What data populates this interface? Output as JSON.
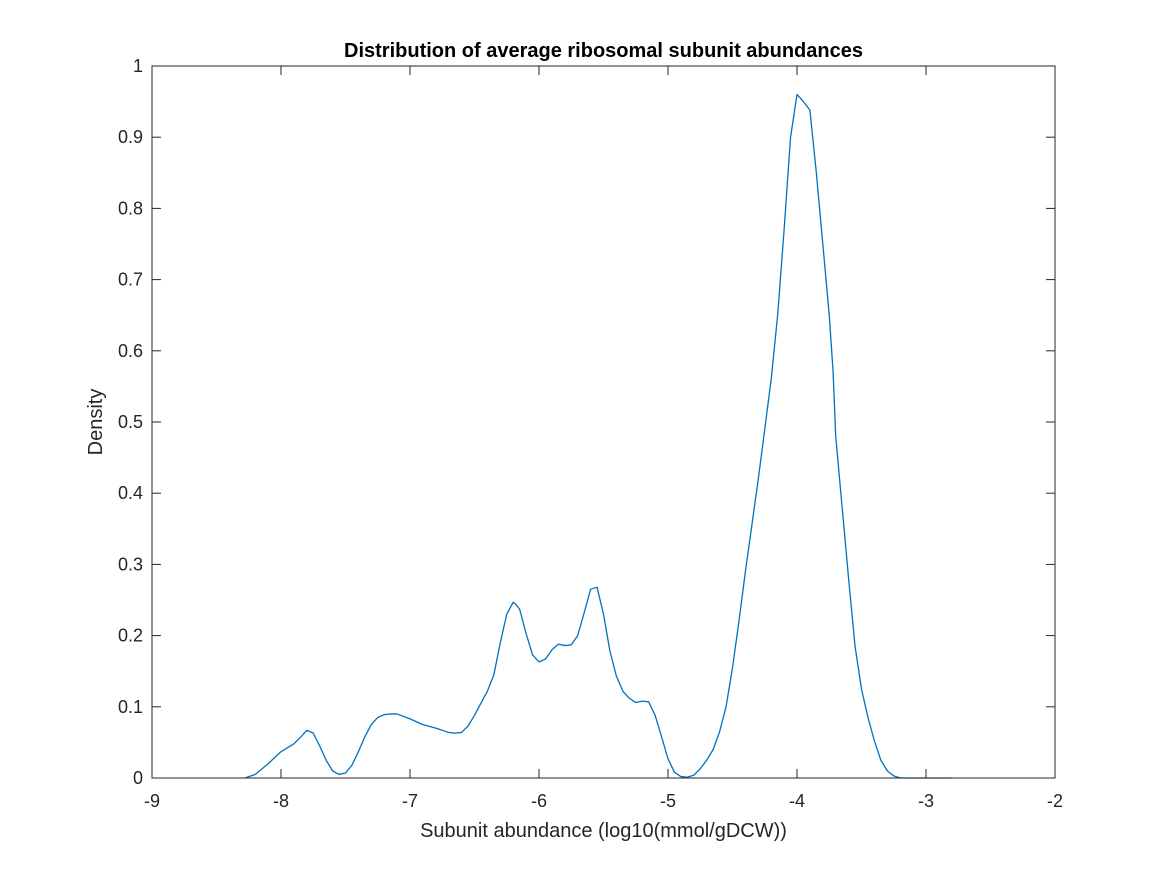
{
  "chart_data": {
    "type": "line",
    "title": "Distribution of average ribosomal subunit abundances",
    "xlabel": "Subunit abundance (log10(mmol/gDCW))",
    "ylabel": "Density",
    "xlim": [
      -9,
      -2
    ],
    "ylim": [
      0,
      1
    ],
    "xticks": [
      -9,
      -8,
      -7,
      -6,
      -5,
      -4,
      -3,
      -2
    ],
    "yticks": [
      0,
      0.1,
      0.2,
      0.3,
      0.4,
      0.5,
      0.6,
      0.7,
      0.8,
      0.9,
      1
    ],
    "xtick_labels": [
      "-9",
      "-8",
      "-7",
      "-6",
      "-5",
      "-4",
      "-3",
      "-2"
    ],
    "ytick_labels": [
      "0",
      "0.1",
      "0.2",
      "0.3",
      "0.4",
      "0.5",
      "0.6",
      "0.7",
      "0.8",
      "0.9",
      "1"
    ],
    "grid": false,
    "line_color": "#0072BD",
    "series": [
      {
        "name": "density",
        "x": [
          -8.28,
          -8.2,
          -8.1,
          -8.0,
          -7.9,
          -7.85,
          -7.8,
          -7.75,
          -7.7,
          -7.65,
          -7.6,
          -7.55,
          -7.5,
          -7.45,
          -7.4,
          -7.35,
          -7.3,
          -7.25,
          -7.2,
          -7.15,
          -7.1,
          -7.0,
          -6.9,
          -6.8,
          -6.7,
          -6.65,
          -6.6,
          -6.55,
          -6.5,
          -6.45,
          -6.4,
          -6.35,
          -6.3,
          -6.25,
          -6.2,
          -6.18,
          -6.15,
          -6.1,
          -6.05,
          -6.0,
          -5.95,
          -5.9,
          -5.85,
          -5.8,
          -5.75,
          -5.7,
          -5.65,
          -5.6,
          -5.55,
          -5.5,
          -5.45,
          -5.4,
          -5.35,
          -5.3,
          -5.25,
          -5.2,
          -5.15,
          -5.1,
          -5.05,
          -5.0,
          -4.95,
          -4.9,
          -4.85,
          -4.8,
          -4.75,
          -4.7,
          -4.65,
          -4.6,
          -4.55,
          -4.5,
          -4.45,
          -4.4,
          -4.35,
          -4.3,
          -4.25,
          -4.2,
          -4.15,
          -4.1,
          -4.05,
          -4.0,
          -3.95,
          -3.9,
          -3.85,
          -3.8,
          -3.75,
          -3.72,
          -3.7,
          -3.65,
          -3.6,
          -3.55,
          -3.5,
          -3.45,
          -3.4,
          -3.35,
          -3.3,
          -3.25,
          -3.2,
          -3.15,
          -3.1,
          -3.05,
          -3.0,
          -2.95,
          -2.9,
          -2.85,
          -2.8
        ],
        "y": [
          0.0,
          0.005,
          0.02,
          0.037,
          0.048,
          0.057,
          0.067,
          0.063,
          0.045,
          0.025,
          0.01,
          0.005,
          0.007,
          0.018,
          0.037,
          0.058,
          0.075,
          0.085,
          0.089,
          0.09,
          0.09,
          0.083,
          0.075,
          0.07,
          0.064,
          0.063,
          0.064,
          0.073,
          0.088,
          0.105,
          0.122,
          0.145,
          0.19,
          0.23,
          0.247,
          0.244,
          0.237,
          0.203,
          0.173,
          0.163,
          0.167,
          0.18,
          0.188,
          0.186,
          0.187,
          0.2,
          0.232,
          0.265,
          0.268,
          0.23,
          0.178,
          0.143,
          0.122,
          0.112,
          0.106,
          0.108,
          0.107,
          0.088,
          0.058,
          0.027,
          0.008,
          0.002,
          0.001,
          0.004,
          0.013,
          0.025,
          0.04,
          0.065,
          0.1,
          0.155,
          0.22,
          0.29,
          0.355,
          0.42,
          0.49,
          0.56,
          0.65,
          0.77,
          0.9,
          0.96,
          0.95,
          0.938,
          0.85,
          0.75,
          0.65,
          0.57,
          0.48,
          0.38,
          0.28,
          0.185,
          0.125,
          0.085,
          0.052,
          0.025,
          0.01,
          0.003,
          0.0,
          0.0,
          0.0,
          0.0,
          0.0,
          0.0,
          0.0,
          0.0,
          0.0
        ]
      }
    ]
  }
}
